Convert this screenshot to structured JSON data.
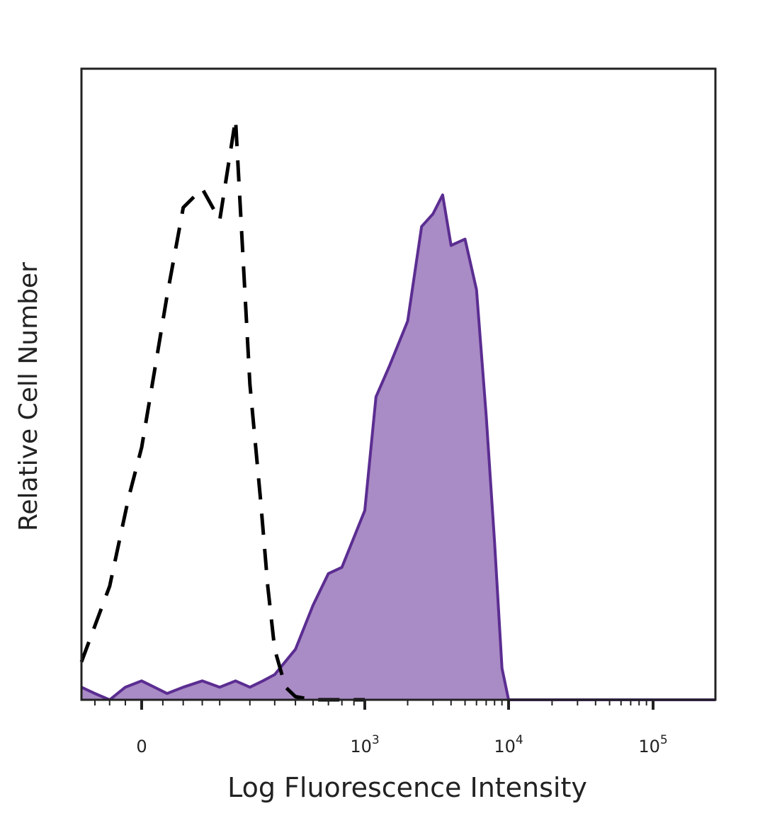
{
  "chart_data": {
    "type": "area",
    "title": "",
    "xlabel": "Log Fluorescence Intensity",
    "ylabel": "Relative Cell Number",
    "x_scale": "biexponential",
    "xlim": [
      -200,
      200000
    ],
    "ylim": [
      0,
      100
    ],
    "grid": false,
    "legend": "none",
    "x_ticks": [
      {
        "value": 0,
        "label": "0"
      },
      {
        "value": 1000,
        "label": "10",
        "exp": "3"
      },
      {
        "value": 10000,
        "label": "10",
        "exp": "4"
      },
      {
        "value": 100000,
        "label": "10",
        "exp": "5"
      }
    ],
    "series": [
      {
        "style": "dashed",
        "color": "#000000",
        "fill": "none",
        "x": [
          -200,
          -100,
          -40,
          0,
          30,
          60,
          100,
          150,
          200,
          250,
          300,
          340,
          370,
          400,
          450,
          500,
          600,
          700,
          800,
          900,
          1000
        ],
        "y": [
          6,
          18,
          32,
          40,
          52,
          64,
          78,
          81,
          76,
          92,
          50,
          32,
          18,
          8,
          2,
          0.5,
          0,
          0,
          0,
          0,
          0
        ]
      },
      {
        "style": "solid",
        "color": "#5b2d91",
        "fill": "#a98bc5",
        "x": [
          -200,
          -150,
          -100,
          -50,
          0,
          30,
          60,
          100,
          150,
          200,
          250,
          300,
          350,
          400,
          500,
          600,
          700,
          800,
          1000,
          1200,
          1500,
          2000,
          2500,
          3000,
          3500,
          4000,
          5000,
          6000,
          7000,
          8000,
          9000,
          10000,
          12000,
          20000,
          50000,
          100000,
          200000
        ],
        "y": [
          2,
          1,
          0,
          2,
          3,
          2,
          1,
          2,
          3,
          2,
          3,
          2,
          3,
          4,
          8,
          15,
          20,
          21,
          30,
          48,
          53,
          60,
          75,
          77,
          80,
          72,
          73,
          65,
          45,
          25,
          5,
          0,
          0,
          0,
          0,
          0,
          0
        ]
      }
    ]
  }
}
